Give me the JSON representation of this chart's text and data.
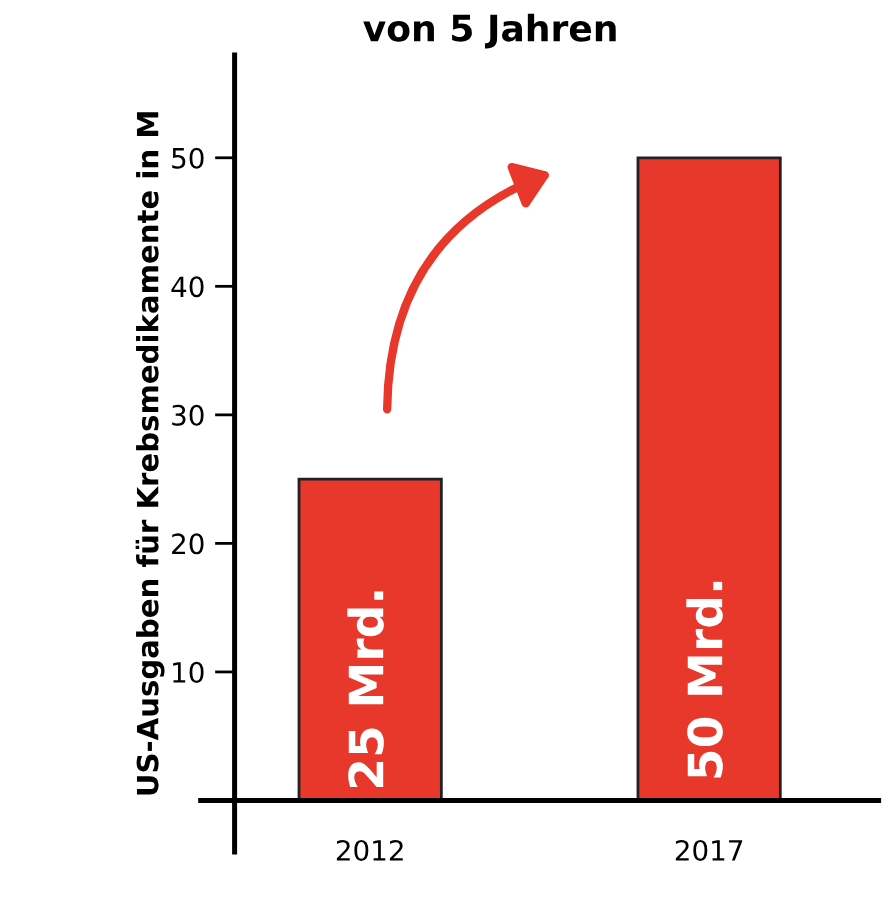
{
  "chart_data": {
    "type": "bar",
    "title": "von 5 Jahren",
    "ylabel": "US-Ausgaben für Krebsmedikamente in M",
    "categories": [
      "2012",
      "2017"
    ],
    "values": [
      25,
      50
    ],
    "color": "#e8372b",
    "value_labels": [
      "25 Mrd.",
      "50 Mrd."
    ],
    "ylim": [
      -4,
      58
    ],
    "yticks": [
      10,
      20,
      30,
      40,
      50
    ],
    "grid": false
  }
}
